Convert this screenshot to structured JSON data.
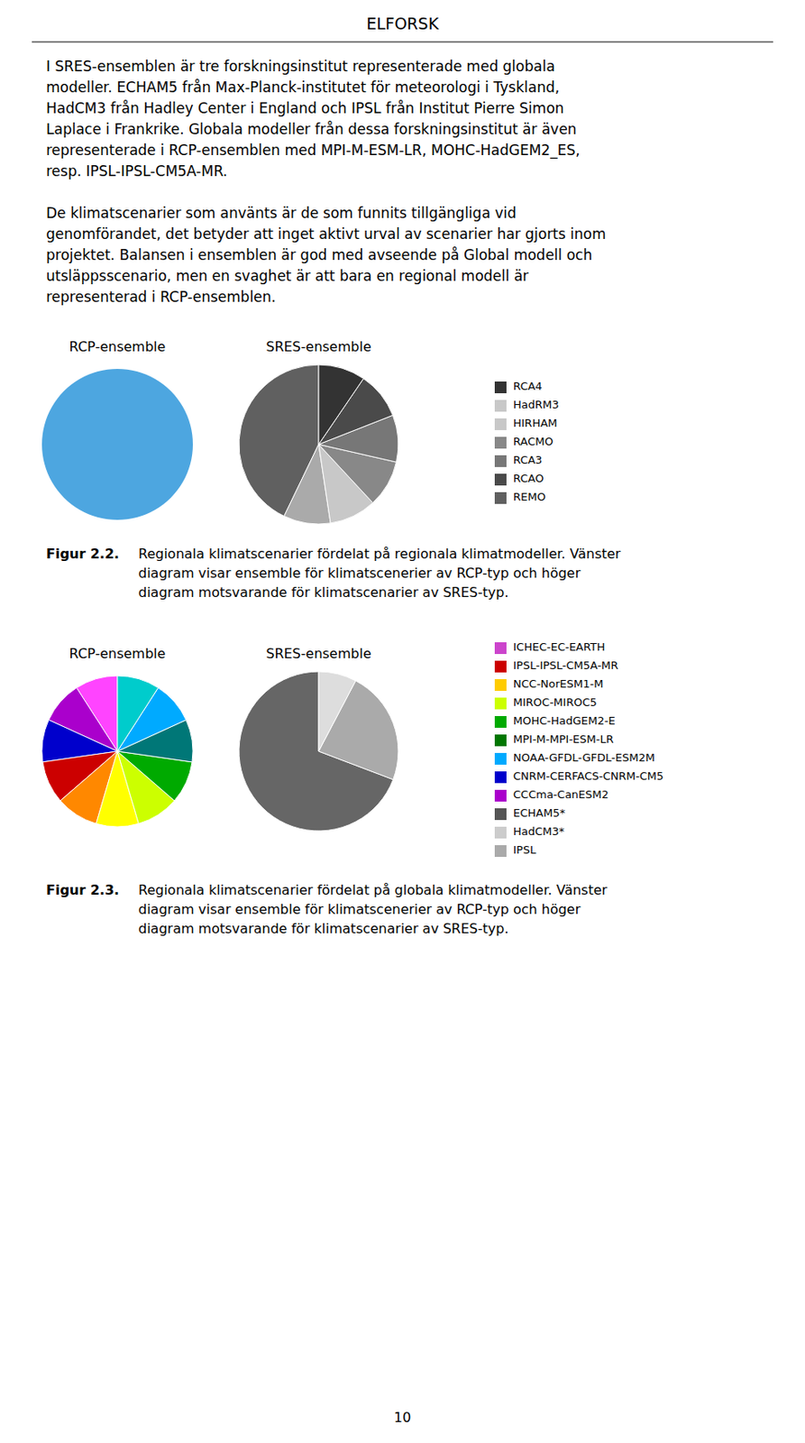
{
  "header": "ELFORSK",
  "page_number": "10",
  "paragraphs": [
    [
      "I SRES-ensemblen är tre forskningsinstitut representerade med globala",
      "modeller. ECHAM5 från Max-Planck-institutet för meteorologi i Tyskland,",
      "HadCM3 från Hadley Center i England och IPSL från Institut Pierre Simon",
      "Laplace i Frankrike. Globala modeller från dessa forskningsinstitut är även",
      "representerade i RCP-ensemblen med MPI-M-ESM-LR, MOHC-HadGEM2_ES,",
      "resp. IPSL-IPSL-CM5A-MR."
    ],
    [
      "De klimatscenarier som använts är de som funnits tillgängliga vid",
      "genomförandet, det betyder att inget aktivt urval av scenarier har gjorts inom",
      "projektet. Balansen i ensemblen är god med avseende på Global modell och",
      "utsläppsscenario, men en svaghet är att bara en regional modell är",
      "representerad i RCP-ensemblen."
    ]
  ],
  "chart_data": [
    {
      "type": "pie",
      "figure_label": "Figur 2.2.",
      "caption": [
        "Regionala klimatscenarier fördelat på regionala klimatmodeller. Vänster",
        "diagram visar ensemble för klimatscenerier av RCP-typ och höger",
        "diagram motsvarande för klimatscenarier av SRES-typ."
      ],
      "pies": [
        {
          "title": "RCP-ensemble",
          "values": [
            1
          ],
          "colors": [
            "#4da6e0"
          ]
        },
        {
          "title": "SRES-ensemble",
          "values": [
            9,
            2,
            2,
            2,
            2,
            2,
            2
          ],
          "colors": [
            "#606060",
            "#aaaaaa",
            "#c8c8c8",
            "#888888",
            "#777777",
            "#4a4a4a",
            "#333333"
          ]
        }
      ],
      "legend_entries": [
        {
          "name": "RCA4",
          "color": "#333333"
        },
        {
          "name": "HadRM3",
          "color": "#c8c8c8"
        },
        {
          "name": "HIRHAM",
          "color": "#c8c8c8"
        },
        {
          "name": "RACMO",
          "color": "#888888"
        },
        {
          "name": "RCA3",
          "color": "#777777"
        },
        {
          "name": "RCAO",
          "color": "#4a4a4a"
        },
        {
          "name": "REMO",
          "color": "#606060"
        }
      ]
    },
    {
      "type": "pie",
      "figure_label": "Figur 2.3.",
      "caption": [
        "Regionala klimatscenarier fördelat på globala klimatmodeller. Vänster",
        "diagram visar ensemble för klimatscenerier av RCP-typ och höger",
        "diagram motsvarande för klimatscenarier av SRES-typ."
      ],
      "pies": [
        {
          "title": "RCP-ensemble",
          "values": [
            1,
            1,
            1,
            1,
            1,
            1,
            1,
            1,
            1,
            1,
            1
          ],
          "colors": [
            "#ff44ff",
            "#aa00cc",
            "#0000cc",
            "#cc0000",
            "#ff8800",
            "#ffff00",
            "#ccff00",
            "#00aa00",
            "#007777",
            "#00aaff",
            "#00cccc"
          ]
        },
        {
          "title": "SRES-ensemble",
          "values": [
            9,
            3,
            1
          ],
          "colors": [
            "#666666",
            "#aaaaaa",
            "#dddddd"
          ]
        }
      ],
      "legend_entries": [
        {
          "name": "ICHEC-EC-EARTH",
          "color": "#cc44cc"
        },
        {
          "name": "IPSL-IPSL-CM5A-MR",
          "color": "#cc0000"
        },
        {
          "name": "NCC-NorESM1-M",
          "color": "#ffcc00"
        },
        {
          "name": "MIROC-MIROC5",
          "color": "#ccff00"
        },
        {
          "name": "MOHC-HadGEM2-E",
          "color": "#00aa00"
        },
        {
          "name": "MPI-M-MPI-ESM-LR",
          "color": "#007700"
        },
        {
          "name": "NOAA-GFDL-GFDL-ESM2M",
          "color": "#00aaff"
        },
        {
          "name": "CNRM-CERFACS-CNRM-CM5",
          "color": "#0000cc"
        },
        {
          "name": "CCCma-CanESM2",
          "color": "#aa00cc"
        },
        {
          "name": "ECHAM5*",
          "color": "#555555"
        },
        {
          "name": "HadCM3*",
          "color": "#cccccc"
        },
        {
          "name": "IPSL",
          "color": "#aaaaaa"
        }
      ]
    }
  ]
}
